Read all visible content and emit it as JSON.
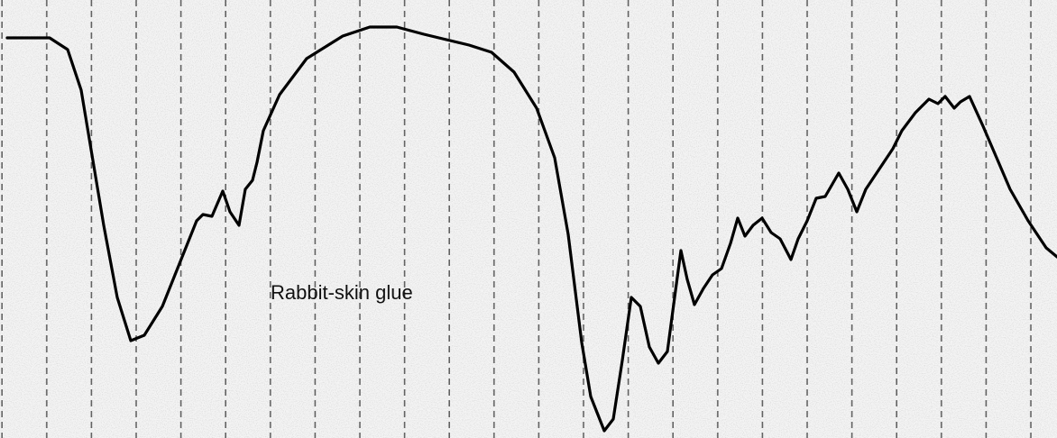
{
  "label": "Rabbit-skin glue"
}
